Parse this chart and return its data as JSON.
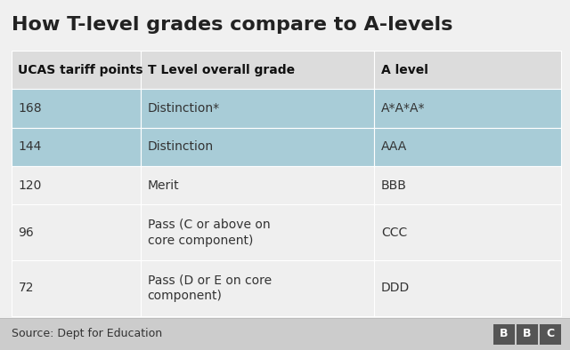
{
  "title": "How T-level grades compare to A-levels",
  "title_fontsize": 16,
  "title_color": "#222222",
  "headers": [
    "UCAS tariff points",
    "T Level overall grade",
    "A level"
  ],
  "rows": [
    [
      "168",
      "Distinction*",
      "A*A*A*"
    ],
    [
      "144",
      "Distinction",
      "AAA"
    ],
    [
      "120",
      "Merit",
      "BBB"
    ],
    [
      "96",
      "Pass (C or above on\ncore component)",
      "CCC"
    ],
    [
      "72",
      "Pass (D or E on core\ncomponent)",
      "DDD"
    ]
  ],
  "highlight_rows": [
    0,
    1
  ],
  "row_highlight_color": "#a8ccd7",
  "header_bg_color": "#dcdcdc",
  "row_bg_color_normal": "#efefef",
  "source_text": "Source: Dept for Education",
  "source_fontsize": 9,
  "bbc_text": "BBC",
  "footer_bg": "#cccccc",
  "background_color": "#f0f0f0",
  "text_color": "#333333",
  "header_text_color": "#111111",
  "cell_fontsize": 10,
  "header_fontsize": 10,
  "col_props": [
    0.235,
    0.425,
    0.34
  ]
}
